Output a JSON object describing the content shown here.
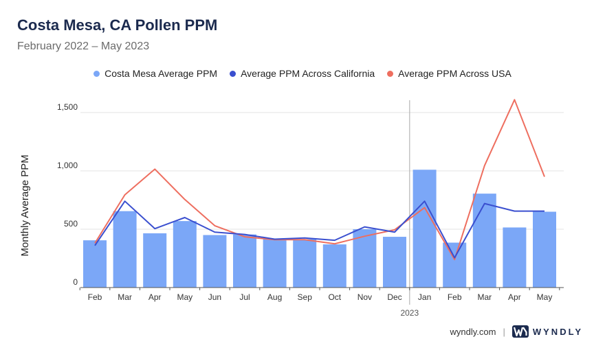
{
  "header": {
    "title": "Costa Mesa, CA Pollen PPM",
    "subtitle": "February 2022 – May 2023"
  },
  "footer": {
    "site": "wyndly.com",
    "separator": "|",
    "brand": "WYNDLY"
  },
  "colors": {
    "bar": "#7ba7f7",
    "california": "#3a4fcf",
    "usa": "#ee6e5f",
    "grid": "#e3e3e3",
    "divider": "#b5b5b5"
  },
  "chart_data": {
    "type": "bar",
    "ylabel": "Monthly Average PPM",
    "ylim": [
      0,
      1600
    ],
    "yticks": [
      0,
      500,
      1000,
      1500
    ],
    "ytick_labels": [
      "0",
      "500",
      "1,000",
      "1,500"
    ],
    "categories": [
      "Feb",
      "Mar",
      "Apr",
      "May",
      "Jun",
      "Jul",
      "Aug",
      "Sep",
      "Oct",
      "Nov",
      "Dec",
      "Jan",
      "Feb",
      "Mar",
      "Apr",
      "May"
    ],
    "year_marker": {
      "label": "2023",
      "before_index": 11
    },
    "grid": true,
    "legend_position": "top",
    "series": [
      {
        "name": "Costa Mesa Average PPM",
        "type": "bar",
        "values": [
          405,
          655,
          465,
          570,
          450,
          455,
          415,
          415,
          370,
          500,
          435,
          1010,
          385,
          805,
          515,
          650
        ]
      },
      {
        "name": "Average PPM Across California",
        "type": "line",
        "values": [
          360,
          740,
          505,
          600,
          475,
          455,
          415,
          425,
          405,
          520,
          475,
          740,
          255,
          720,
          655,
          655
        ]
      },
      {
        "name": "Average PPM Across USA",
        "type": "line",
        "values": [
          380,
          795,
          1015,
          755,
          530,
          435,
          410,
          410,
          375,
          440,
          495,
          685,
          240,
          1045,
          1610,
          950
        ]
      }
    ]
  }
}
